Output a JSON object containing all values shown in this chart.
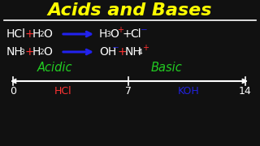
{
  "title": "Acids and Bases",
  "title_color": "#FFFF00",
  "bg_color": "#111111",
  "white": "#FFFFFF",
  "red": "#FF3333",
  "blue": "#2222DD",
  "green": "#22CC22",
  "yellow": "#FFFF00",
  "arrow_color": "#2222EE",
  "acidic_label": "Acidic",
  "basic_label": "Basic",
  "ph0": "0",
  "ph7": "7",
  "ph14": "14",
  "hcl_label": "HCl",
  "koh_label": "KOH"
}
